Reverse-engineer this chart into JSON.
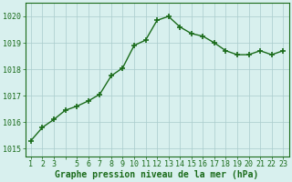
{
  "x": [
    1,
    2,
    3,
    4,
    5,
    6,
    7,
    8,
    9,
    10,
    11,
    12,
    13,
    14,
    15,
    16,
    17,
    18,
    19,
    20,
    21,
    22,
    23
  ],
  "y": [
    1015.3,
    1015.8,
    1016.1,
    1016.45,
    1016.6,
    1016.8,
    1017.05,
    1017.75,
    1018.05,
    1018.9,
    1019.1,
    1019.85,
    1020.0,
    1019.6,
    1019.35,
    1019.25,
    1019.0,
    1018.7,
    1018.55,
    1018.55,
    1018.7,
    1018.55,
    1018.7
  ],
  "line_color": "#1a6b1a",
  "marker": "+",
  "marker_size": 5,
  "marker_lw": 1.2,
  "line_width": 1.0,
  "bg_color": "#d8f0ee",
  "grid_color": "#aacccc",
  "xlabel": "Graphe pression niveau de la mer (hPa)",
  "xlabel_fontsize": 7.0,
  "xlabel_color": "#1a6b1a",
  "xtick_labels": [
    "1",
    "2",
    "3",
    "",
    "5",
    "6",
    "7",
    "8",
    "9",
    "10",
    "11",
    "12",
    "13",
    "14",
    "15",
    "16",
    "17",
    "18",
    "19",
    "20",
    "21",
    "22",
    "23"
  ],
  "ytick_labels": [
    "1015",
    "1016",
    "1017",
    "1018",
    "1019",
    "1020"
  ],
  "ytick_values": [
    1015,
    1016,
    1017,
    1018,
    1019,
    1020
  ],
  "ylim": [
    1014.7,
    1020.5
  ],
  "xlim": [
    0.5,
    23.5
  ],
  "tick_color": "#1a6b1a",
  "tick_fontsize": 6.0,
  "spine_color": "#1a6b1a"
}
